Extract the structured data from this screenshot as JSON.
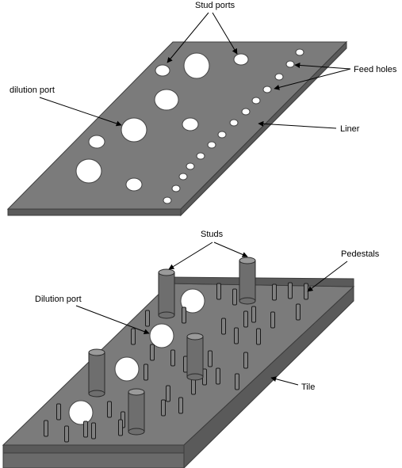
{
  "labels": {
    "stud_ports": "Stud ports",
    "feed_holes": "Feed holes",
    "dilution_port_top": "dilution port",
    "liner": "Liner",
    "studs": "Studs",
    "pedestals": "Pedestals",
    "dilution_port_bottom": "Dilution port",
    "tile": "Tile"
  },
  "colors": {
    "plate": "#7b7b7b",
    "plate_edge": "#5a5a5a",
    "hole": "#ffffff"
  }
}
